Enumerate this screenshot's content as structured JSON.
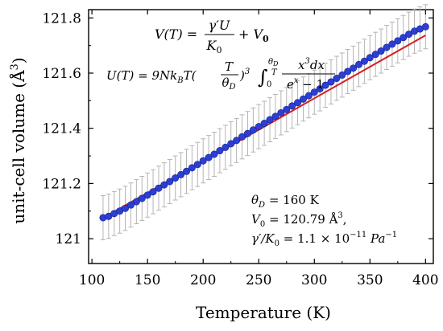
{
  "chart_data": {
    "type": "scatter",
    "xlabel": "Temperature (K)",
    "ylabel": "unit-cell volume (Å",
    "ylabel_exponent": "3",
    "ylabel_close": ")",
    "xlim": [
      97,
      407
    ],
    "ylim": [
      120.91,
      121.83
    ],
    "xticks": [
      100,
      150,
      200,
      250,
      300,
      350,
      400
    ],
    "yticks": [
      121,
      121.2,
      121.4,
      121.6,
      121.8
    ],
    "ytick_labels": [
      "121",
      "121.2",
      "121.4",
      "121.6",
      "121.8"
    ],
    "grid": false,
    "fit_line": {
      "color": "#d62020",
      "x_start": 110,
      "x_end": 400,
      "y_start": 121.075,
      "y_end": 121.737
    },
    "error_bar_halfwidth": 0.08,
    "series": [
      {
        "marker_color": "#2b3fd6",
        "errorbar_color": "#b4b4b4",
        "x": [
          110,
          115,
          120,
          125,
          130,
          135,
          140,
          145,
          150,
          155,
          160,
          165,
          170,
          175,
          180,
          185,
          190,
          195,
          200,
          205,
          210,
          215,
          220,
          225,
          230,
          235,
          240,
          245,
          250,
          255,
          260,
          265,
          270,
          275,
          280,
          285,
          290,
          295,
          300,
          305,
          310,
          315,
          320,
          325,
          330,
          335,
          340,
          345,
          350,
          355,
          360,
          365,
          370,
          375,
          380,
          385,
          390,
          395,
          400
        ],
        "y": [
          121.076,
          121.081,
          121.091,
          121.1,
          121.11,
          121.122,
          121.134,
          121.146,
          121.158,
          121.17,
          121.183,
          121.195,
          121.207,
          121.22,
          121.232,
          121.244,
          121.257,
          121.269,
          121.282,
          121.294,
          121.306,
          121.319,
          121.331,
          121.344,
          121.356,
          121.369,
          121.381,
          121.394,
          121.406,
          121.418,
          121.431,
          121.443,
          121.456,
          121.468,
          121.481,
          121.493,
          121.506,
          121.518,
          121.531,
          121.543,
          121.556,
          121.568,
          121.581,
          121.593,
          121.606,
          121.618,
          121.631,
          121.643,
          121.656,
          121.668,
          121.68,
          121.693,
          121.705,
          121.717,
          121.729,
          121.741,
          121.752,
          121.76,
          121.768
        ]
      }
    ],
    "annotations": {
      "eq1": {
        "lhs": "V(T) = ",
        "num": "γ′U",
        "den": "K",
        "den_sub": "0",
        "rhs": "+ V",
        "rhs_sub": "0"
      },
      "eq2": {
        "lhs": "U(T) = 9Nk",
        "lhs_sub": "B",
        "mid": "T(",
        "frac_num": "T",
        "frac_den": "θ",
        "frac_den_sub": "D",
        "pow": ")",
        "pow_exp": "3",
        "integral": "∫",
        "int_upper": "θ",
        "int_upper_sub": "D",
        "int_upper_over": "T",
        "int_lower": "0",
        "int_num": "x",
        "int_num_exp": "3",
        "int_num_tail": "dx",
        "int_den": "e",
        "int_den_exp": "x",
        "int_den_tail": " − 1"
      },
      "p1": {
        "sym": "θ",
        "sub": "D",
        "text": " = 160 K"
      },
      "p2": {
        "sym": "V",
        "sub": "0",
        "text": " = 120.79 Å",
        "sup": "3",
        "tail": ","
      },
      "p3": {
        "sym": "γ′/K",
        "sub": "0",
        "text": " = 1.1 × 10",
        "sup": "−11",
        "tail": " Pa",
        "tail_sup": "−1"
      }
    }
  }
}
